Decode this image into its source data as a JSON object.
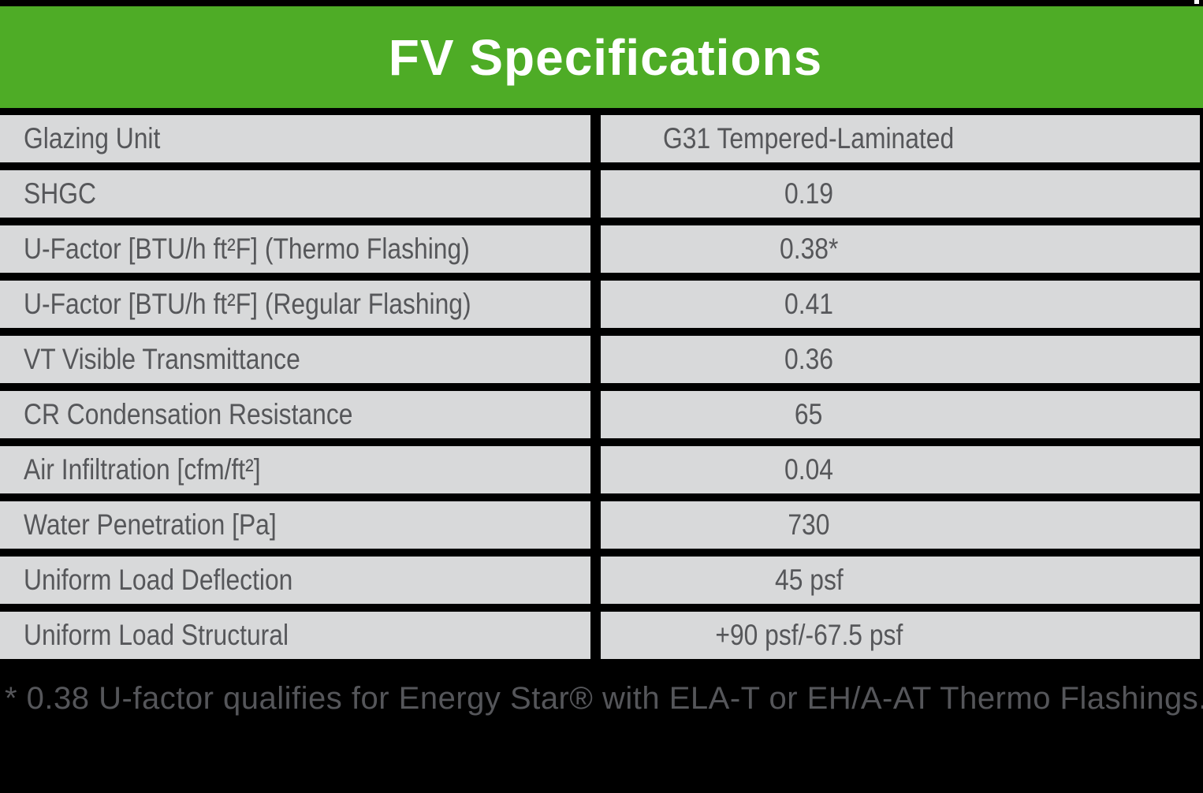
{
  "header": {
    "title": "FV Specifications"
  },
  "table": {
    "rows": [
      {
        "label": "Glazing Unit",
        "value": "G31 Tempered-Laminated"
      },
      {
        "label": "SHGC",
        "value": "0.19"
      },
      {
        "label": "U-Factor [BTU/h ft²F] (Thermo Flashing)",
        "value": "0.38*"
      },
      {
        "label": "U-Factor [BTU/h ft²F] (Regular Flashing)",
        "value": "0.41"
      },
      {
        "label": "VT Visible Transmittance",
        "value": "0.36"
      },
      {
        "label": "CR Condensation Resistance",
        "value": "65"
      },
      {
        "label": "Air Infiltration [cfm/ft²]",
        "value": "0.04"
      },
      {
        "label": "Water Penetration [Pa]",
        "value": "730"
      },
      {
        "label": "Uniform Load Deflection",
        "value": "45 psf"
      },
      {
        "label": "Uniform Load Structural",
        "value": "+90 psf/-67.5 psf"
      }
    ]
  },
  "footnote": {
    "text": "* 0.38 U-factor qualifies for Energy Star® with ELA-T or EH/A-AT Thermo Flashings."
  },
  "colors": {
    "page_bg": "#000000",
    "header_green": "#4EAC26",
    "row_gray": "#D8D9DA",
    "label_text": "#56575A",
    "footnote_text": "#55565A",
    "title_white": "#FFFFFF"
  }
}
